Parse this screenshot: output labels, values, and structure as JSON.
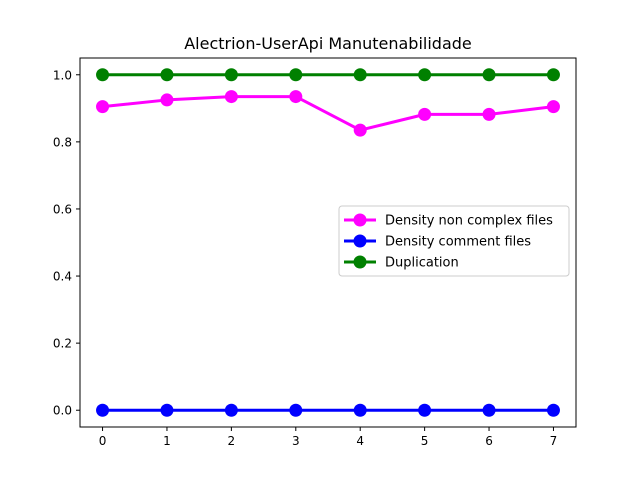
{
  "chart_data": {
    "type": "line",
    "title": "Alectrion-UserApi Manutenabilidade",
    "xlabel": "",
    "ylabel": "",
    "x": [
      0,
      1,
      2,
      3,
      4,
      5,
      6,
      7
    ],
    "x_ticks": [
      "0",
      "1",
      "2",
      "3",
      "4",
      "5",
      "6",
      "7"
    ],
    "y_ticks": [
      "0.0",
      "0.2",
      "0.4",
      "0.6",
      "0.8",
      "1.0"
    ],
    "xlim": [
      -0.35,
      7.35
    ],
    "ylim": [
      -0.05,
      1.05
    ],
    "grid": false,
    "legend_position": "center-right",
    "series": [
      {
        "name": "Density non complex files",
        "color": "#ff00ff",
        "marker": "circle",
        "values": [
          0.905,
          0.925,
          0.935,
          0.935,
          0.835,
          0.882,
          0.882,
          0.905
        ]
      },
      {
        "name": "Density comment files",
        "color": "#0000ff",
        "marker": "circle",
        "values": [
          0.0,
          0.0,
          0.0,
          0.0,
          0.0,
          0.0,
          0.0,
          0.0
        ]
      },
      {
        "name": "Duplication",
        "color": "#008000",
        "marker": "circle",
        "values": [
          1.0,
          1.0,
          1.0,
          1.0,
          1.0,
          1.0,
          1.0,
          1.0
        ]
      }
    ]
  }
}
